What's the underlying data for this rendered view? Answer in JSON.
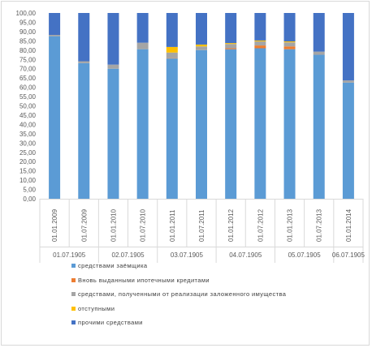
{
  "colors": {
    "series": [
      "#5b9bd5",
      "#ed7d31",
      "#a5a5a5",
      "#ffc000",
      "#4472c4"
    ],
    "axis": "#595959",
    "grid": "#d9d9d9"
  },
  "chart_data": {
    "type": "bar",
    "stacked": true,
    "categories": [
      "01.01.2009",
      "01.07.2009",
      "01.01.2010",
      "01.07.2010",
      "01.01.2011",
      "01.07.2011",
      "01.01.2012",
      "01.07.2012",
      "01.01.2013",
      "01.07.2013",
      "01.01.2014"
    ],
    "x_groups": [
      "01.07.1905",
      "02.07.1905",
      "03.07.1905",
      "04.07.1905",
      "05.07.1905",
      "06.07.1905"
    ],
    "ylim": [
      0,
      100
    ],
    "yticks": [
      "0,00",
      "5,00",
      "10,00",
      "15,00",
      "20,00",
      "25,00",
      "30,00",
      "35,00",
      "40,00",
      "45,00",
      "50,00",
      "55,00",
      "60,00",
      "65,00",
      "70,00",
      "75,00",
      "80,00",
      "85,00",
      "90,00",
      "95,00",
      "100,00"
    ],
    "series": [
      {
        "name": "средствами заёмщика",
        "values": [
          87.5,
          73,
          70,
          80.5,
          75.5,
          80,
          80.5,
          81,
          80.5,
          77.5,
          62.5
        ]
      },
      {
        "name": "Вновь выданными ипотечными кредитами",
        "values": [
          0,
          0,
          0,
          0,
          0.2,
          0,
          0.5,
          1.5,
          1.5,
          0,
          0
        ]
      },
      {
        "name": "средствами, полученными от реализации заложенного имущества",
        "values": [
          0.7,
          1,
          2.2,
          3.5,
          3,
          2,
          2.3,
          2.2,
          2.2,
          1.7,
          1.2
        ]
      },
      {
        "name": "отступными",
        "values": [
          0,
          0,
          0,
          0,
          3,
          1,
          0.5,
          0.5,
          0.5,
          0,
          0
        ]
      },
      {
        "name": "прочими средствами",
        "values": [
          11.8,
          26,
          27.8,
          16,
          18.3,
          17,
          16.2,
          14.8,
          15.3,
          20.8,
          36.3
        ]
      }
    ],
    "legend_position": "bottom",
    "grid": false
  }
}
